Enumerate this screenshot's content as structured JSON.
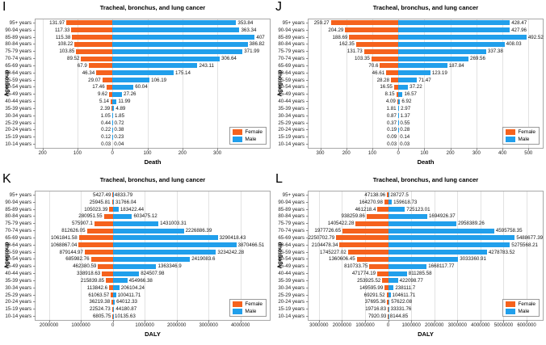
{
  "figure": {
    "background": "#ffffff"
  },
  "colors": {
    "female": "#F5621D",
    "male": "#219FEB",
    "grid": "#e2e2e2",
    "axis_border": "#a8a8a8",
    "tick": "#8a8a8a"
  },
  "chart_data": [
    {
      "panel_letter": "I",
      "type": "bar",
      "orientation": "diverging-horizontal",
      "title": "Tracheal, bronchus, and lung cancer",
      "xlabel": "Death",
      "ylabel": "Agegroup",
      "grid": "vertical",
      "legend_position": "lower right",
      "categories": [
        "95+ years",
        "90-94 years",
        "85-89 years",
        "80-84 years",
        "75-79 years",
        "70-74 years",
        "65-69 years",
        "60-64 years",
        "55-59 years",
        "50-54 years",
        "45-49 years",
        "40-44 years",
        "35-39 years",
        "30-34 years",
        "25-29 years",
        "20-24 years",
        "15-19 years",
        "10-14 years"
      ],
      "series": [
        {
          "name": "Female",
          "values": [
            131.97,
            117.33,
            115.38,
            108.22,
            103.85,
            89.52,
            67.9,
            46.34,
            29.07,
            17.46,
            9.62,
            5.14,
            2.39,
            1.05,
            0.44,
            0.22,
            0.12,
            0.03
          ]
        },
        {
          "name": "Male",
          "values": [
            353.84,
            363.34,
            407,
            386.82,
            371.99,
            306.64,
            243.11,
            175.14,
            106.19,
            60.04,
            27.26,
            11.99,
            4.89,
            1.85,
            0.72,
            0.38,
            0.23,
            0.04
          ]
        }
      ],
      "xlim": [
        -220,
        450
      ],
      "xticks": [
        {
          "v": -200,
          "label": "200"
        },
        {
          "v": -100,
          "label": "100"
        },
        {
          "v": 0,
          "label": "0"
        },
        {
          "v": 100,
          "label": "100"
        },
        {
          "v": 200,
          "label": "200"
        },
        {
          "v": 300,
          "label": "300"
        }
      ]
    },
    {
      "panel_letter": "J",
      "type": "bar",
      "orientation": "diverging-horizontal",
      "title": "Tracheal, bronchus, and lung cancer",
      "xlabel": "Death",
      "ylabel": "Agegroup",
      "grid": "vertical",
      "legend_position": "lower right",
      "categories": [
        "95+ years",
        "90-94 years",
        "85-89 years",
        "80-84 years",
        "75-79 years",
        "70-74 years",
        "65-69 years",
        "60-64 years",
        "55-59 years",
        "50-54 years",
        "45-49 years",
        "40-44 years",
        "35-39 years",
        "30-34 years",
        "25-29 years",
        "20-24 years",
        "15-19 years",
        "10-14 years"
      ],
      "series": [
        {
          "name": "Female",
          "values": [
            259.27,
            204.29,
            188.69,
            162.35,
            131.73,
            103.35,
            70.6,
            46.61,
            28.28,
            16.55,
            8.15,
            4.09,
            1.81,
            0.87,
            0.37,
            0.19,
            0.09,
            0.03
          ]
        },
        {
          "name": "Male",
          "values": [
            428.47,
            427.96,
            492.52,
            408.03,
            337.38,
            269.56,
            187.84,
            123.19,
            71.47,
            37.22,
            16.57,
            6.92,
            2.97,
            1.37,
            0.55,
            0.28,
            0.14,
            0.03
          ]
        }
      ],
      "xlim": [
        -345,
        555
      ],
      "xticks": [
        {
          "v": -300,
          "label": "300"
        },
        {
          "v": -200,
          "label": "200"
        },
        {
          "v": -100,
          "label": "100"
        },
        {
          "v": 0,
          "label": "0"
        },
        {
          "v": 100,
          "label": "100"
        },
        {
          "v": 200,
          "label": "200"
        },
        {
          "v": 300,
          "label": "300"
        },
        {
          "v": 400,
          "label": "400"
        },
        {
          "v": 500,
          "label": "500"
        }
      ]
    },
    {
      "panel_letter": "K",
      "type": "bar",
      "orientation": "diverging-horizontal",
      "title": "Tracheal, bronchus, and lung cancer",
      "xlabel": "DALY",
      "ylabel": "Agegroup",
      "grid": "vertical",
      "legend_position": "lower right",
      "categories": [
        "95+ years",
        "90-94 years",
        "85-89 years",
        "80-84 years",
        "75-79 years",
        "70-74 years",
        "65-69 years",
        "60-64 years",
        "55-59 years",
        "50-54 years",
        "45-49 years",
        "40-44 years",
        "35-39 years",
        "30-34 years",
        "25-29 years",
        "20-24 years",
        "15-19 years",
        "10-14 years"
      ],
      "series": [
        {
          "name": "Female",
          "values": [
            5427.49,
            25945.81,
            105023.39,
            280951.55,
            575907.1,
            812626.05,
            1061841.58,
            1068867.04,
            879144.97,
            685982.76,
            462380.59,
            338918.63,
            215839.85,
            113842.6,
            61063.57,
            36219.38,
            22524.73,
            6805.75
          ]
        },
        {
          "name": "Male",
          "values": [
            4833.79,
            31766.04,
            183422.44,
            603475.12,
            1431003.31,
            2226886.39,
            3290418.43,
            3870466.51,
            3234242.28,
            2419083.6,
            1363346.9,
            824507.98,
            454966.38,
            206104.24,
            100411.71,
            64012.33,
            44180.87,
            10135.63
          ]
        }
      ],
      "xlim": [
        -2420000,
        4920000
      ],
      "xticks": [
        {
          "v": -2000000,
          "label": "2000000"
        },
        {
          "v": -1000000,
          "label": "1000000"
        },
        {
          "v": 0,
          "label": "0"
        },
        {
          "v": 1000000,
          "label": "1000000"
        },
        {
          "v": 2000000,
          "label": "2000000"
        },
        {
          "v": 3000000,
          "label": "3000000"
        },
        {
          "v": 4000000,
          "label": "4000000"
        }
      ]
    },
    {
      "panel_letter": "L",
      "type": "bar",
      "orientation": "diverging-horizontal",
      "title": "Tracheal, bronchus, and lung cancer",
      "xlabel": "DALY",
      "ylabel": "Agegroup",
      "grid": "vertical",
      "legend_position": "lower right",
      "categories": [
        "95+ years",
        "90-94 years",
        "85-89 years",
        "80-84 years",
        "75-79 years",
        "70-74 years",
        "65-69 years",
        "60-64 years",
        "55-59 years",
        "50-54 years",
        "45-49 years",
        "40-44 years",
        "35-39 years",
        "30-34 years",
        "25-29 years",
        "20-24 years",
        "15-19 years",
        "10-14 years"
      ],
      "series": [
        {
          "name": "Female",
          "values": [
            47138.96,
            164270.98,
            461218.4,
            938259.86,
            1405422.28,
            1977726.65,
            2250702.79,
            2104478.34,
            1745227.02,
            1360606.45,
            810733.75,
            471774.19,
            253925.52,
            149595.99,
            69291.52,
            37695.36,
            19716.83,
            7920.93
          ]
        },
        {
          "name": "Male",
          "values": [
            28727.5,
            159618.73,
            725123.01,
            1694926.37,
            2958389.26,
            4595758.35,
            5488677.39,
            5275568.21,
            4278783.52,
            3033360.91,
            1668117.77,
            811285.58,
            422098.77,
            238111.7,
            104611.71,
            57622.08,
            33331.76,
            8144.85
          ]
        }
      ],
      "xlim": [
        -3450000,
        6700000
      ],
      "xticks": [
        {
          "v": -3000000,
          "label": "3000000"
        },
        {
          "v": -2000000,
          "label": "2000000"
        },
        {
          "v": -1000000,
          "label": "1000000"
        },
        {
          "v": 0,
          "label": "0"
        },
        {
          "v": 1000000,
          "label": "1000000"
        },
        {
          "v": 2000000,
          "label": "2000000"
        },
        {
          "v": 3000000,
          "label": "3000000"
        },
        {
          "v": 4000000,
          "label": "4000000"
        },
        {
          "v": 5000000,
          "label": "5000000"
        },
        {
          "v": 6000000,
          "label": "6000000"
        }
      ]
    }
  ]
}
